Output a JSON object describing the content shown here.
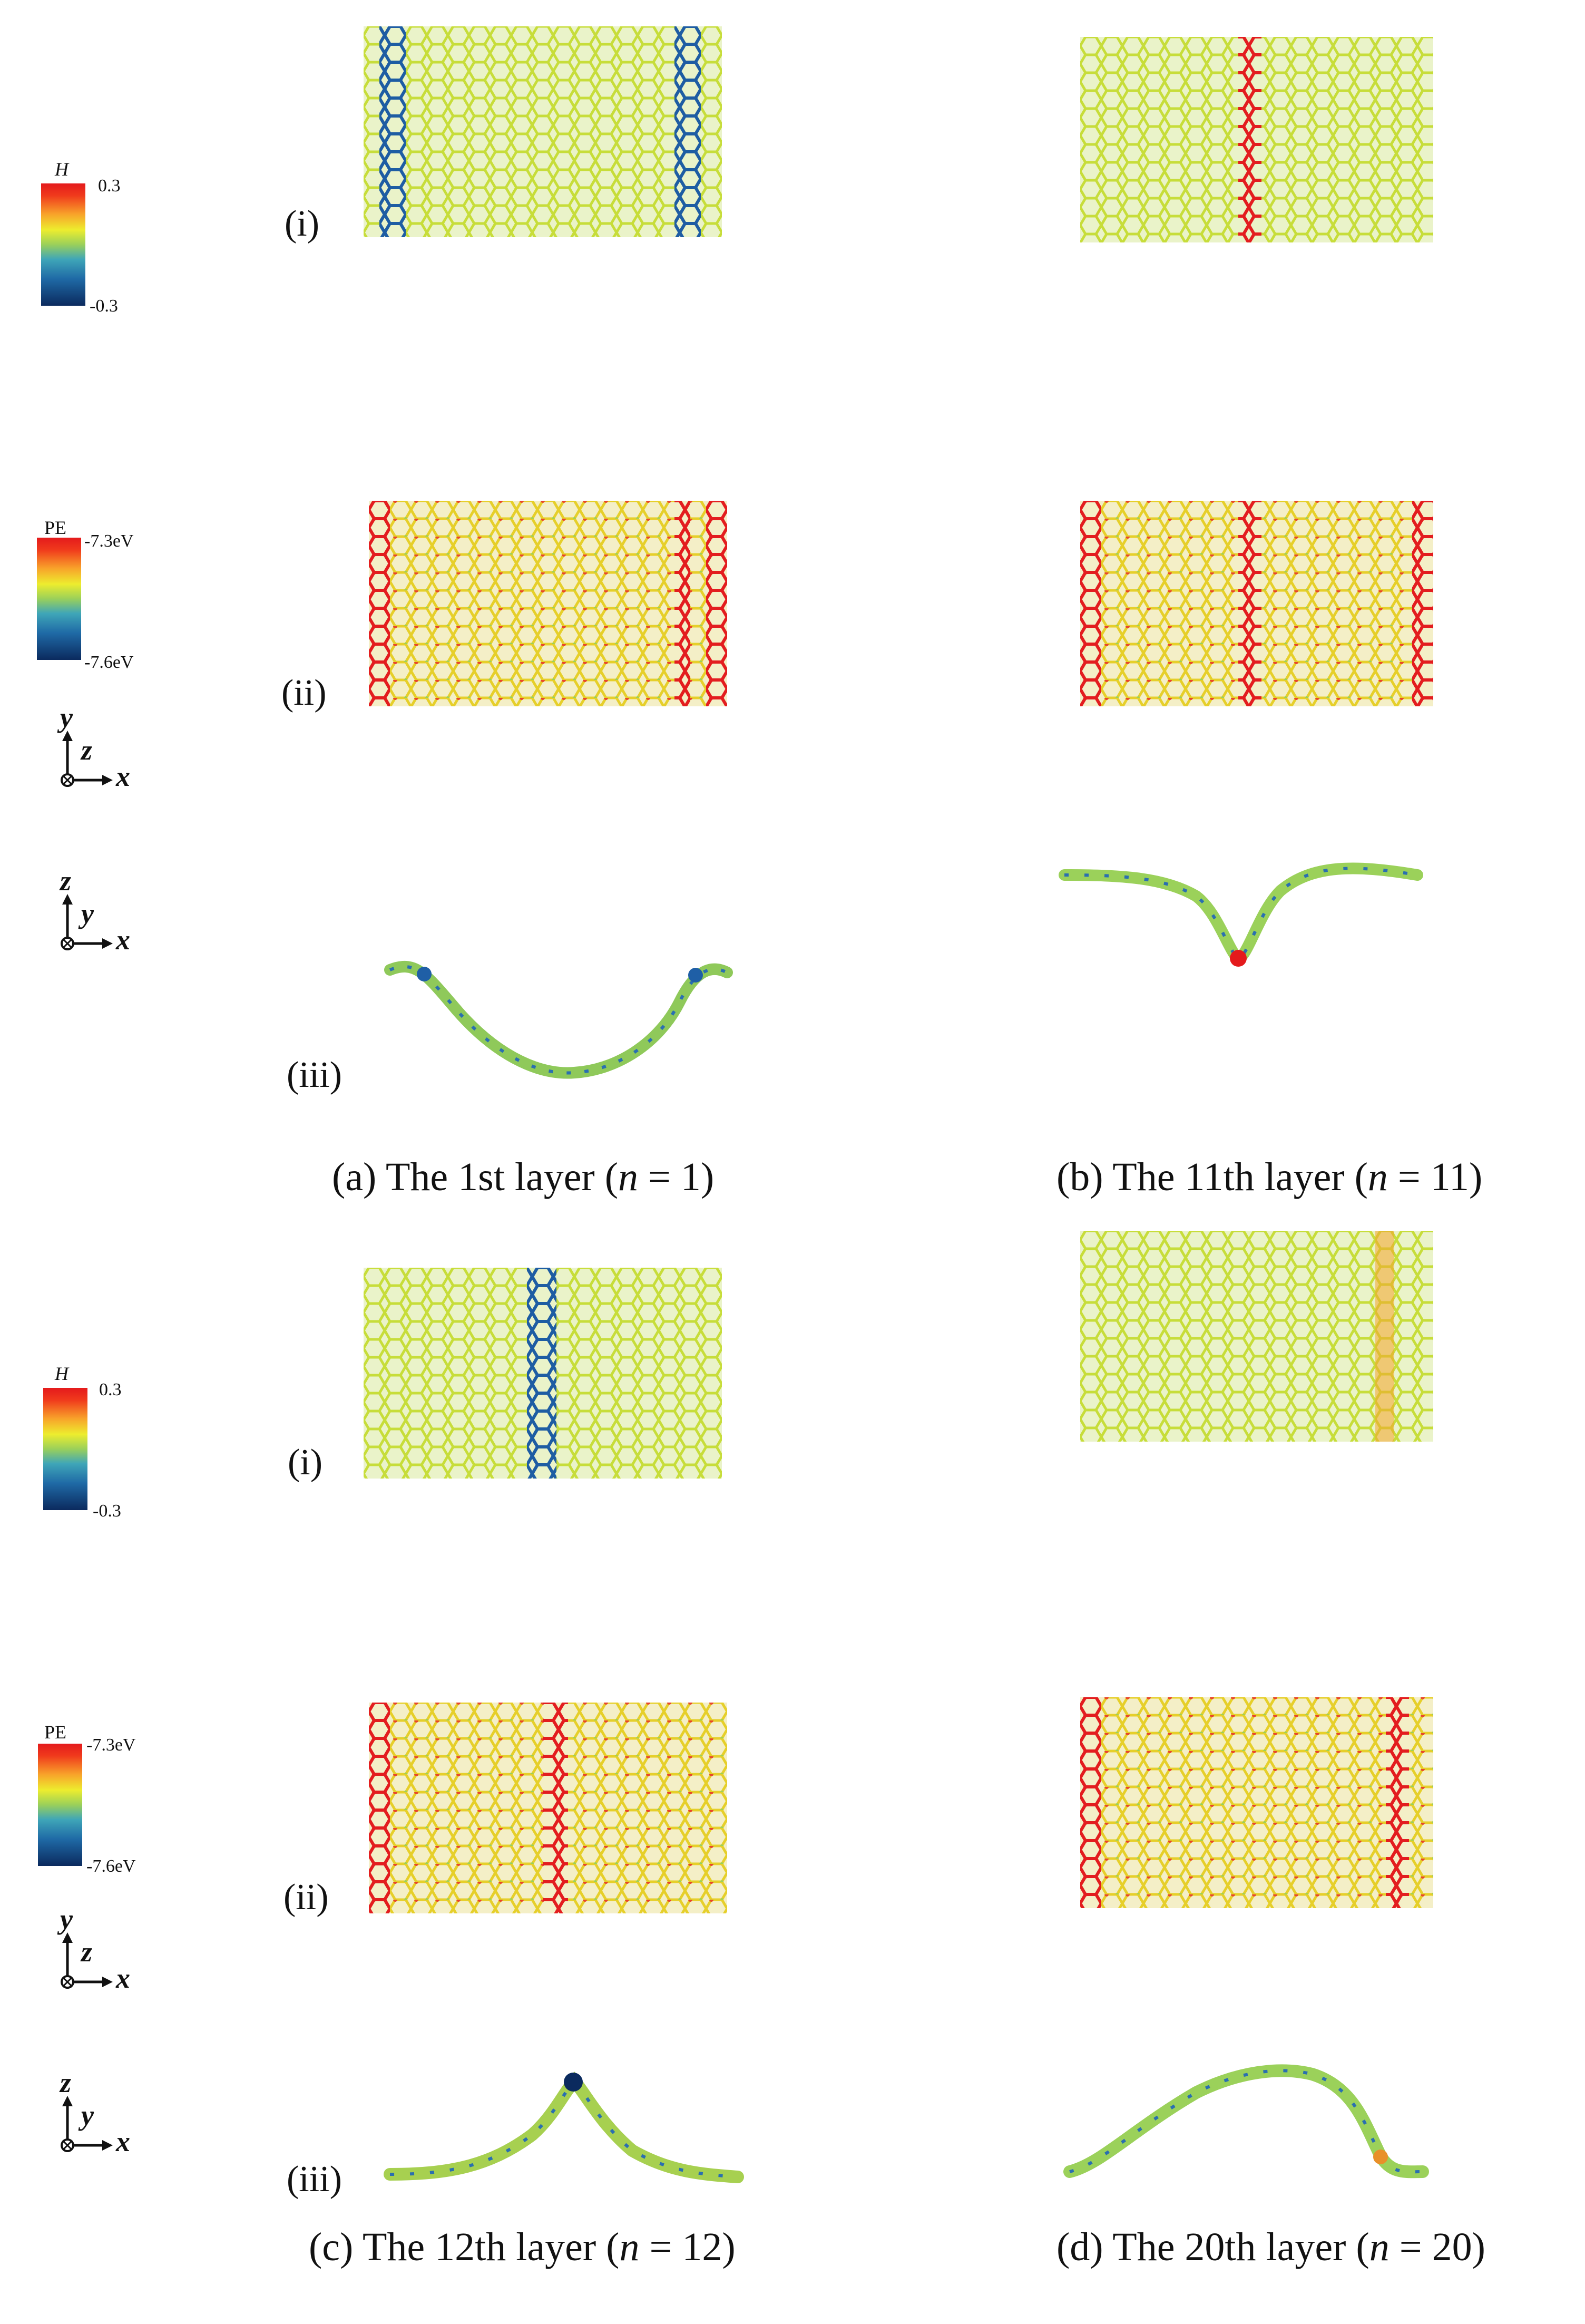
{
  "figure": {
    "roman_labels": {
      "i": "(i)",
      "ii": "(ii)",
      "iii": "(iii)"
    },
    "colorbar_h": {
      "title": "H",
      "max": "0.3",
      "min": "-0.3"
    },
    "colorbar_pe": {
      "title": "PE",
      "max": "-7.3eV",
      "min": "-7.6eV"
    },
    "axes_xy": {
      "up": "y",
      "out": "z",
      "right": "x"
    },
    "axes_xz": {
      "up": "z",
      "in": "y",
      "right": "x"
    },
    "panels": {
      "a": {
        "label": "(a)",
        "text_before": "The 1st layer (",
        "var": "n",
        "text_after": " = 1)"
      },
      "b": {
        "label": "(b)",
        "text_before": "The 11th layer (",
        "var": "n",
        "text_after": " = 11)"
      },
      "c": {
        "label": "(c)",
        "text_before": "The 12th layer (",
        "var": "n",
        "text_after": " = 12)"
      },
      "d": {
        "label": "(d)",
        "text_before": "The 20th layer (",
        "var": "n",
        "text_after": " = 20)"
      }
    },
    "colors": {
      "red": "#e41a1c",
      "yellow": "#e8e02a",
      "green": "#9bd15a",
      "blue": "#1f5fa6",
      "navy": "#0b2a5e"
    }
  }
}
